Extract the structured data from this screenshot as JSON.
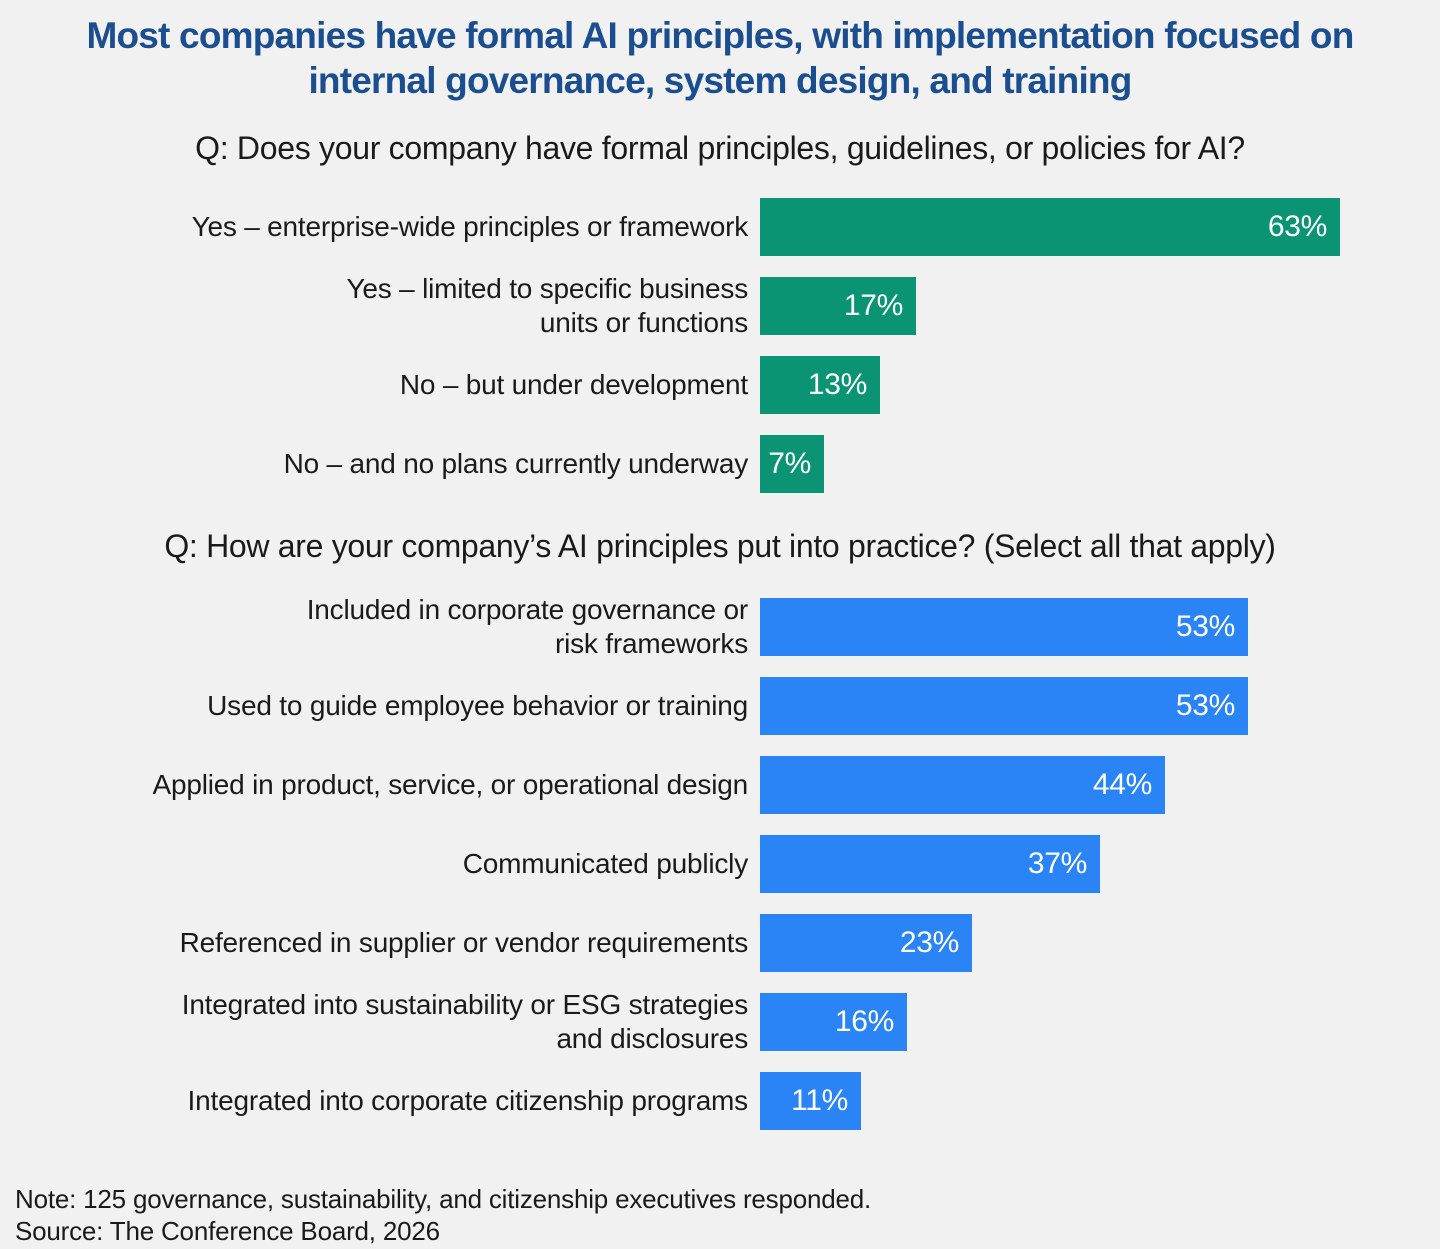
{
  "header": {
    "title_line1": "Most companies have formal AI principles, with implementation focused on",
    "title_line2": "internal governance, system design, and training"
  },
  "colors": {
    "background": "#F1F1F1",
    "title_text": "#1B4E8E",
    "body_text": "#1A1A1A",
    "chart1_bar": "#0A9473",
    "chart2_bar": "#2B84F6",
    "value_label": "#FFFFFF"
  },
  "chart_data": [
    {
      "type": "bar",
      "orientation": "horizontal",
      "title": "Q: Does your company have formal principles, guidelines, or policies for AI?",
      "categories": [
        "Yes – enterprise-wide principles or framework",
        "Yes – limited to specific business\nunits or functions",
        "No – but under development",
        "No – and no plans currently underway"
      ],
      "values": [
        63,
        17,
        13,
        7
      ],
      "unit": "%",
      "value_labels": [
        "63%",
        "17%",
        "13%",
        "7%"
      ],
      "bar_color": "#0A9473",
      "xlim": [
        0,
        70
      ],
      "grid": false,
      "legend": false
    },
    {
      "type": "bar",
      "orientation": "horizontal",
      "title": "Q: How are your company’s AI principles put into practice? (Select all that apply)",
      "categories": [
        "Included in corporate governance or\nrisk frameworks",
        "Used to guide employee behavior or training",
        "Applied in product, service, or operational design",
        "Communicated publicly",
        "Referenced in supplier or vendor requirements",
        "Integrated into sustainability or ESG strategies\nand disclosures",
        "Integrated into corporate citizenship programs"
      ],
      "values": [
        53,
        53,
        44,
        37,
        23,
        16,
        11
      ],
      "unit": "%",
      "value_labels": [
        "53%",
        "53%",
        "44%",
        "37%",
        "23%",
        "16%",
        "11%"
      ],
      "bar_color": "#2B84F6",
      "xlim": [
        0,
        70
      ],
      "grid": false,
      "legend": false
    }
  ],
  "footer": {
    "note": "Note: 125 governance, sustainability, and citizenship executives responded.",
    "source": "Source: The Conference Board, 2026"
  }
}
